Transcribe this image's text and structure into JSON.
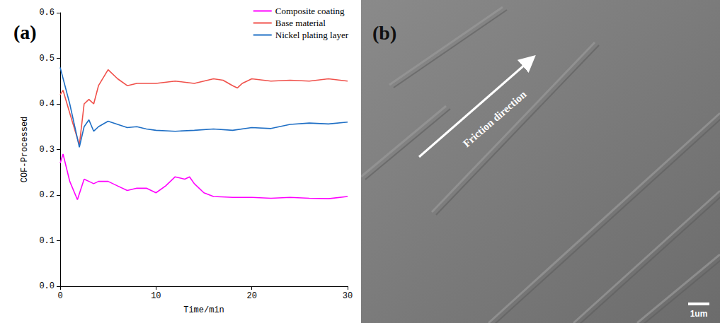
{
  "chart_data": {
    "type": "line",
    "title": "(a)",
    "x_label": "Time/min",
    "y_label": "COF-Processed",
    "xlim": [
      0,
      30
    ],
    "xticks": [
      0,
      10,
      20,
      30
    ],
    "ylim": [
      0,
      0.6
    ],
    "yticks": [
      {
        "value": 0,
        "label": "0.0"
      },
      0.1,
      0.2,
      0.3,
      0.4,
      0.5,
      0.6
    ],
    "grid": false,
    "legend": "upper right",
    "series": [
      {
        "name": "Composite coating",
        "color": "#ff00ff",
        "x": [
          0,
          0.3,
          1,
          1.8,
          2.5,
          3,
          3.5,
          4,
          5,
          6,
          7,
          8,
          9,
          10,
          11,
          12,
          13,
          13.5,
          14,
          15,
          16,
          18,
          20,
          22,
          24,
          26,
          28,
          30
        ],
        "values": [
          0.27,
          0.29,
          0.23,
          0.19,
          0.235,
          0.23,
          0.225,
          0.23,
          0.23,
          0.22,
          0.21,
          0.215,
          0.215,
          0.205,
          0.22,
          0.24,
          0.235,
          0.24,
          0.225,
          0.205,
          0.197,
          0.195,
          0.195,
          0.193,
          0.195,
          0.193,
          0.192,
          0.197
        ]
      },
      {
        "name": "Base material",
        "color": "#f0504a",
        "x": [
          0,
          0.3,
          1,
          2,
          2.5,
          3,
          3.5,
          4,
          5,
          6,
          7,
          8,
          10,
          12,
          14,
          16,
          17,
          18,
          18.5,
          19,
          20,
          22,
          24,
          26,
          28,
          30
        ],
        "values": [
          0.42,
          0.43,
          0.38,
          0.31,
          0.4,
          0.41,
          0.4,
          0.44,
          0.475,
          0.455,
          0.44,
          0.445,
          0.445,
          0.45,
          0.445,
          0.455,
          0.452,
          0.44,
          0.435,
          0.445,
          0.455,
          0.45,
          0.452,
          0.45,
          0.455,
          0.45
        ]
      },
      {
        "name": "Nickel plating layer",
        "color": "#1f6fc5",
        "x": [
          0,
          0.5,
          1,
          2,
          2.5,
          3,
          3.5,
          4,
          5,
          6,
          7,
          8,
          9,
          10,
          12,
          14,
          16,
          18,
          20,
          22,
          24,
          26,
          28,
          30
        ],
        "values": [
          0.48,
          0.44,
          0.4,
          0.305,
          0.35,
          0.365,
          0.34,
          0.35,
          0.362,
          0.355,
          0.348,
          0.35,
          0.345,
          0.342,
          0.34,
          0.342,
          0.345,
          0.342,
          0.348,
          0.346,
          0.355,
          0.358,
          0.356,
          0.36
        ]
      }
    ]
  },
  "image_panel": {
    "label": "(b)",
    "arrow_text": "Friction direction",
    "scale_bar": "1um"
  }
}
